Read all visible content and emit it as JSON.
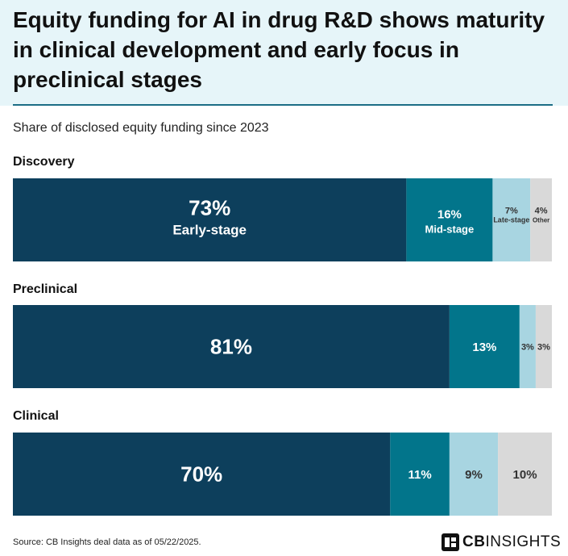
{
  "title": "Equity funding for AI in drug R&D shows maturity in clinical development and early focus in preclinical stages",
  "subtitle": "Share of disclosed equity funding since 2023",
  "source": "Source: CB Insights deal data as of 05/22/2025.",
  "brand": {
    "bold": "CB",
    "light": "INSIGHTS",
    "logo_icon": "cb-insights-logo-icon"
  },
  "colors": {
    "early": "#0d3f5c",
    "mid": "#02758b",
    "late": "#a8d5e1",
    "other": "#d9d9d9",
    "header_bg": "#e6f5f9",
    "rule": "#1c6e86"
  },
  "chart_data": {
    "type": "bar",
    "orientation": "horizontal",
    "stacked": true,
    "percent": true,
    "categories": [
      "Discovery",
      "Preclinical",
      "Clinical"
    ],
    "series": [
      {
        "name": "Early-stage",
        "values": [
          73,
          81,
          70
        ]
      },
      {
        "name": "Mid-stage",
        "values": [
          16,
          13,
          11
        ]
      },
      {
        "name": "Late-stage",
        "values": [
          7,
          3,
          9
        ]
      },
      {
        "name": "Other",
        "values": [
          4,
          3,
          10
        ]
      }
    ],
    "value_labels": [
      [
        "73%",
        "16%",
        "7%",
        "4%"
      ],
      [
        "81%",
        "13%",
        "3%",
        "3%"
      ],
      [
        "70%",
        "11%",
        "9%",
        "10%"
      ]
    ],
    "xlim": [
      0,
      100
    ],
    "grid": false,
    "legend": "inline"
  }
}
